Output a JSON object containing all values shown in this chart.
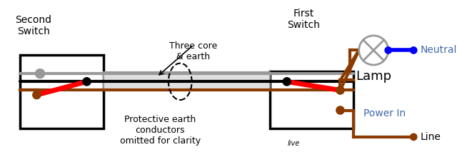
{
  "bg_color": "#ffffff",
  "switch_brown": "#8B3A00",
  "wire_gray": "#999999",
  "wire_red": "#ff0000",
  "wire_blue": "#0000ff",
  "wire_black": "#000000",
  "box_color": "#000000",
  "dot_color_dark": "#000000",
  "dot_color_brown": "#8B3A00",
  "dot_color_gray": "#999999",
  "lamp_color": "#cccccc",
  "text_color": "#000000",
  "text_color_blue": "#4169aa",
  "title_second": "Second\nSwitch",
  "title_first": "First\nSwitch",
  "label_lamp": "Lamp",
  "label_neutral": "Neutral",
  "label_powerin": "Power In",
  "label_line": "Line",
  "label_three_core": "Three core\n& earth",
  "label_protective": "Protective earth\nconductors\nomitted for clarity",
  "label_live": "live"
}
